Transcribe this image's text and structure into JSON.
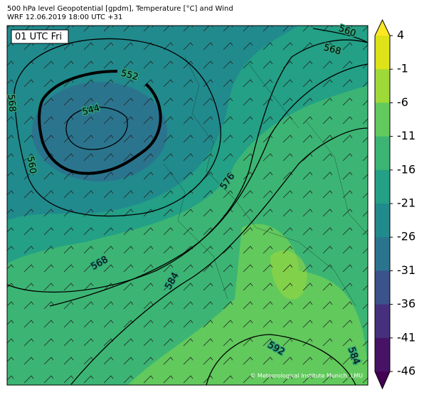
{
  "header": {
    "title": "500 hPa level Geopotential [gpdm], Temperature [°C] and Wind",
    "subtitle": "WRF 12.06.2019 18:00 UTC +31"
  },
  "map": {
    "time_label": "01 UTC Fri",
    "contour_labels": [
      "560",
      "568",
      "552",
      "544",
      "568",
      "560",
      "576",
      "568",
      "584",
      "592",
      "584"
    ],
    "credit": "© Meteorological Institute Munich, LMU"
  },
  "colorbar": {
    "ticks": [
      4,
      -1,
      -6,
      -11,
      -16,
      -21,
      -26,
      -31,
      -36,
      -41,
      -46
    ],
    "colors": [
      "#dde318",
      "#9fd938",
      "#62c95d",
      "#3cb574",
      "#23a086",
      "#218a8d",
      "#2b748e",
      "#3b528b",
      "#46307e",
      "#471465"
    ],
    "extend_colors": [
      "#fde725",
      "#440154"
    ]
  }
}
